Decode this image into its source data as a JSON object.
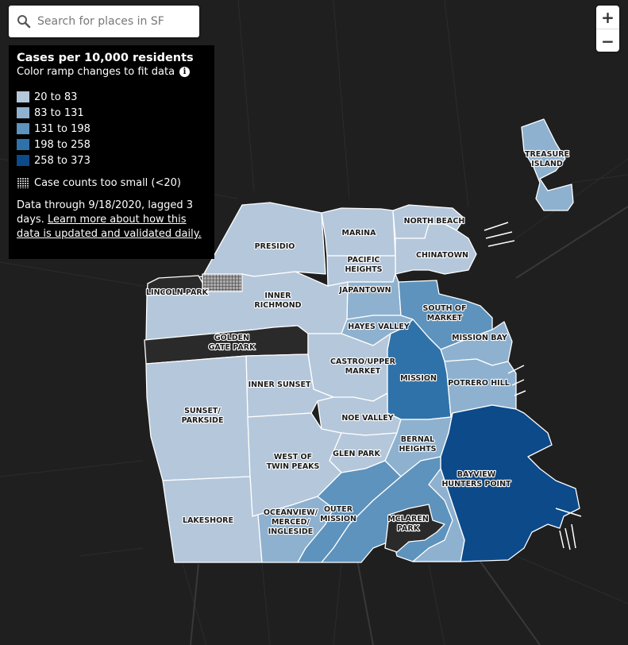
{
  "search": {
    "placeholder": "Search for places in SF"
  },
  "zoom": {
    "in_label": "+",
    "out_label": "−"
  },
  "legend": {
    "title": "Cases per 10,000 residents",
    "subtitle": "Color ramp changes to fit data",
    "bins": [
      {
        "label": "20 to 83",
        "color": "#b5c7db"
      },
      {
        "label": "83 to 131",
        "color": "#8eb1cf"
      },
      {
        "label": "131 to 198",
        "color": "#5d93bd"
      },
      {
        "label": "198 to 258",
        "color": "#2f72a9"
      },
      {
        "label": "258 to 373",
        "color": "#0c4a8a"
      }
    ],
    "small_label": "Case counts too small (<20)",
    "note_prefix": "Data through 9/18/2020, lagged 3 days. ",
    "note_link": "Learn more about how this data is updated and validated daily."
  },
  "neighborhoods": [
    {
      "name": "PRESIDIO",
      "bin": 0
    },
    {
      "name": "MARINA",
      "bin": 0
    },
    {
      "name": "NORTH BEACH",
      "bin": 0
    },
    {
      "name": "CHINATOWN",
      "bin": 0
    },
    {
      "name": "PACIFIC HEIGHTS",
      "bin": 0
    },
    {
      "name": "JAPANTOWN",
      "bin": 1
    },
    {
      "name": "LINCOLN PARK",
      "bin": -1
    },
    {
      "name": "INNER RICHMOND",
      "bin": 0
    },
    {
      "name": "HAYES VALLEY",
      "bin": 1
    },
    {
      "name": "SOUTH OF MARKET",
      "bin": 2
    },
    {
      "name": "MISSION BAY",
      "bin": 1
    },
    {
      "name": "GOLDEN GATE PARK",
      "bin": -1
    },
    {
      "name": "CASTRO/UPPER MARKET",
      "bin": 0
    },
    {
      "name": "MISSION",
      "bin": 3
    },
    {
      "name": "INNER SUNSET",
      "bin": 0
    },
    {
      "name": "POTRERO HILL",
      "bin": 1
    },
    {
      "name": "SUNSET/ PARKSIDE",
      "bin": 0
    },
    {
      "name": "NOE VALLEY",
      "bin": 0
    },
    {
      "name": "BERNAL HEIGHTS",
      "bin": 1
    },
    {
      "name": "GLEN PARK",
      "bin": 0
    },
    {
      "name": "WEST OF TWIN PEAKS",
      "bin": 0
    },
    {
      "name": "BAYVIEW HUNTERS POINT",
      "bin": 4
    },
    {
      "name": "LAKESHORE",
      "bin": 0
    },
    {
      "name": "OCEANVIEW/ MERCED/ INGLESIDE",
      "bin": 1
    },
    {
      "name": "OUTER MISSION",
      "bin": 2
    },
    {
      "name": "MCLAREN PARK",
      "bin": -1
    },
    {
      "name": "TREASURE ISLAND",
      "bin": 1
    }
  ],
  "colors": {
    "background": "#1f1f1f",
    "no_data": "#2a2a2a",
    "border": "#ffffff"
  }
}
